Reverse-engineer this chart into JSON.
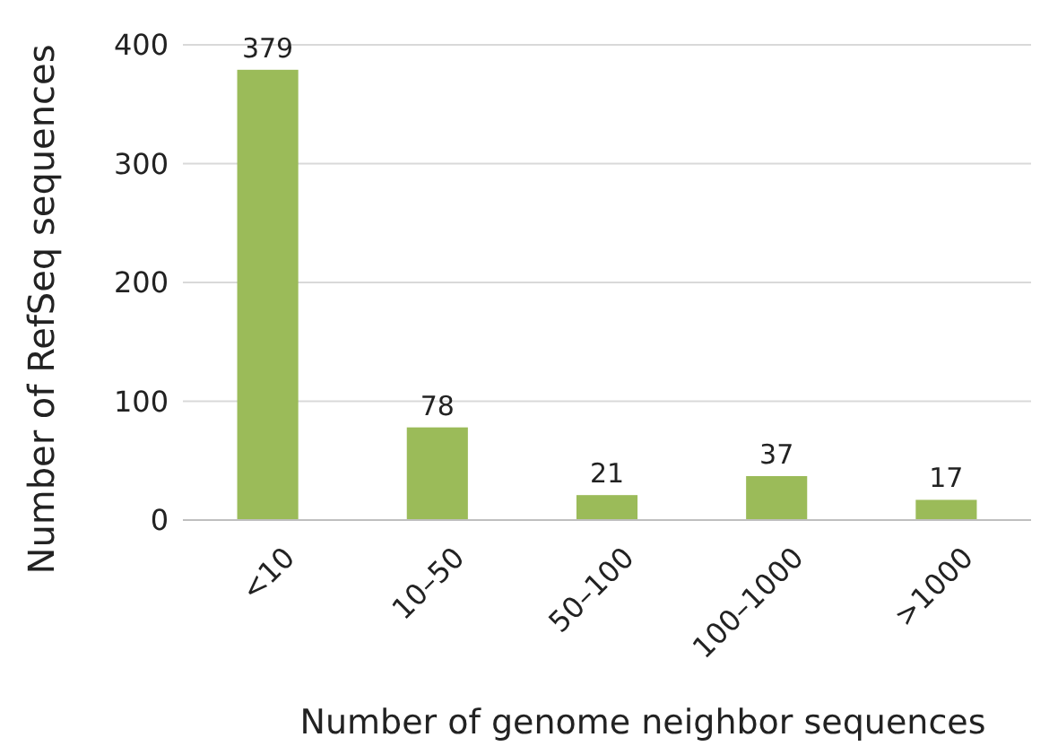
{
  "chart_data": {
    "type": "bar",
    "xlabel": "Number of genome neighbor sequences",
    "ylabel": "Number of RefSeq sequences",
    "categories": [
      "<10",
      "10–50",
      "50–100",
      "100–1000",
      ">1000"
    ],
    "values": [
      379,
      78,
      21,
      37,
      17
    ],
    "color": "#9bbb59",
    "ylim": [
      0,
      400
    ],
    "yticks": [
      0,
      100,
      200,
      300,
      400
    ],
    "grid": "y",
    "data_labels": true
  }
}
